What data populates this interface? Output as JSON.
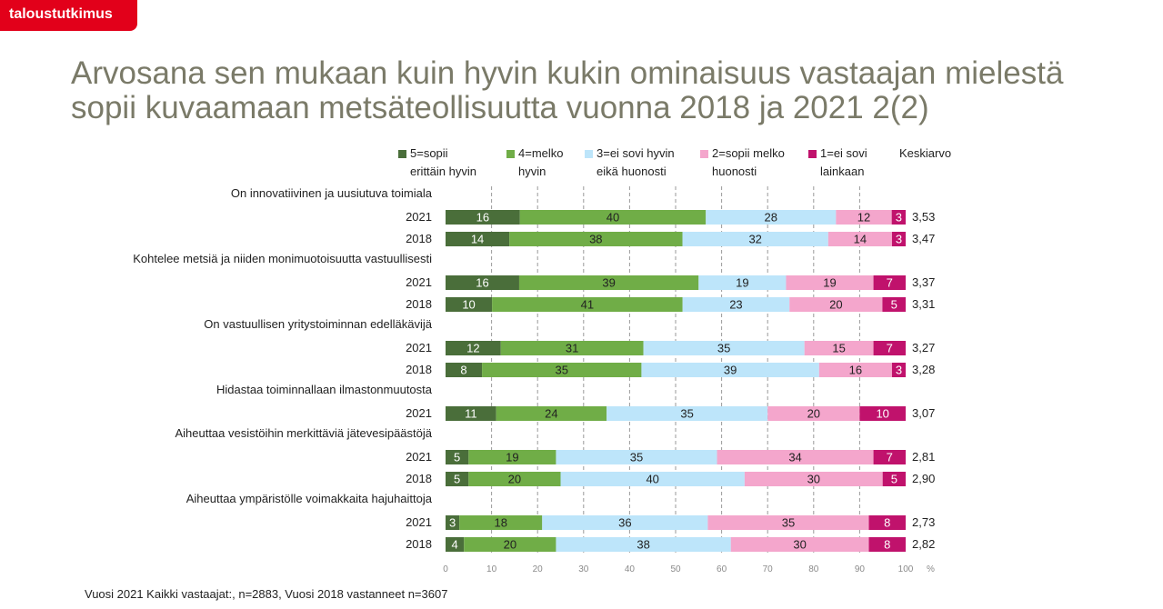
{
  "brand": {
    "label": "taloustutkimus",
    "color": "#e2001a"
  },
  "title": "Arvosana sen mukaan kuin hyvin kukin ominaisuus vastaajan mielestä sopii kuvaamaan metsäteollisuutta vuonna 2018 ja 2021 2(2)",
  "footnote": "Vuosi 2021 Kaikki vastaajat:, n=2883, Vuosi 2018 vastanneet n=3607",
  "mean_header": "Keskiarvo",
  "chart_data": {
    "type": "bar",
    "orientation": "horizontal",
    "stacked": true,
    "xlim": [
      0,
      100
    ],
    "x_ticks": [
      "0",
      "10",
      "20",
      "30",
      "40",
      "50",
      "60",
      "70",
      "80",
      "90",
      "100"
    ],
    "x_unit": "%",
    "grid": "vertical dashed",
    "legend_position": "top",
    "series": [
      {
        "name": "5=sopii\nerittäin hyvin",
        "color": "#4a6e3a",
        "label_color": "#ffffff"
      },
      {
        "name": "4=melko\nhyvin",
        "color": "#70ad47",
        "label_color": "#222222"
      },
      {
        "name": "3=ei sovi hyvin\neikä huonosti",
        "color": "#bde5fa",
        "label_color": "#222222"
      },
      {
        "name": "2=sopii melko\nhuonosti",
        "color": "#f4a6cc",
        "label_color": "#222222"
      },
      {
        "name": "1=ei sovi\nlainkaan",
        "color": "#c0126c",
        "label_color": "#ffffff"
      }
    ],
    "groups": [
      {
        "label": "On innovatiivinen ja uusiutuva toimiala",
        "rows": [
          {
            "year": "2021",
            "values": [
              16,
              40,
              28,
              12,
              3
            ],
            "mean": "3,53"
          },
          {
            "year": "2018",
            "values": [
              14,
              38,
              32,
              14,
              3
            ],
            "mean": "3,47"
          }
        ]
      },
      {
        "label": "Kohtelee metsiä ja niiden monimuotoisuutta vastuullisesti",
        "rows": [
          {
            "year": "2021",
            "values": [
              16,
              39,
              19,
              19,
              7
            ],
            "mean": "3,37"
          },
          {
            "year": "2018",
            "values": [
              10,
              41,
              23,
              20,
              5
            ],
            "mean": "3,31"
          }
        ]
      },
      {
        "label": "On vastuullisen yritystoiminnan edelläkävijä",
        "rows": [
          {
            "year": "2021",
            "values": [
              12,
              31,
              35,
              15,
              7
            ],
            "mean": "3,27"
          },
          {
            "year": "2018",
            "values": [
              8,
              35,
              39,
              16,
              3
            ],
            "mean": "3,28"
          }
        ]
      },
      {
        "label": "Hidastaa toiminnallaan ilmastonmuutosta",
        "rows": [
          {
            "year": "2021",
            "values": [
              11,
              24,
              35,
              20,
              10
            ],
            "mean": "3,07"
          }
        ]
      },
      {
        "label": "Aiheuttaa vesistöihin merkittäviä jätevesipäästöjä",
        "rows": [
          {
            "year": "2021",
            "values": [
              5,
              19,
              35,
              34,
              7
            ],
            "mean": "2,81"
          },
          {
            "year": "2018",
            "values": [
              5,
              20,
              40,
              30,
              5
            ],
            "mean": "2,90"
          }
        ]
      },
      {
        "label": "Aiheuttaa ympäristölle voimakkaita hajuhaittoja",
        "rows": [
          {
            "year": "2021",
            "values": [
              3,
              18,
              36,
              35,
              8
            ],
            "mean": "2,73"
          },
          {
            "year": "2018",
            "values": [
              4,
              20,
              38,
              30,
              8
            ],
            "mean": "2,82"
          }
        ]
      }
    ]
  }
}
